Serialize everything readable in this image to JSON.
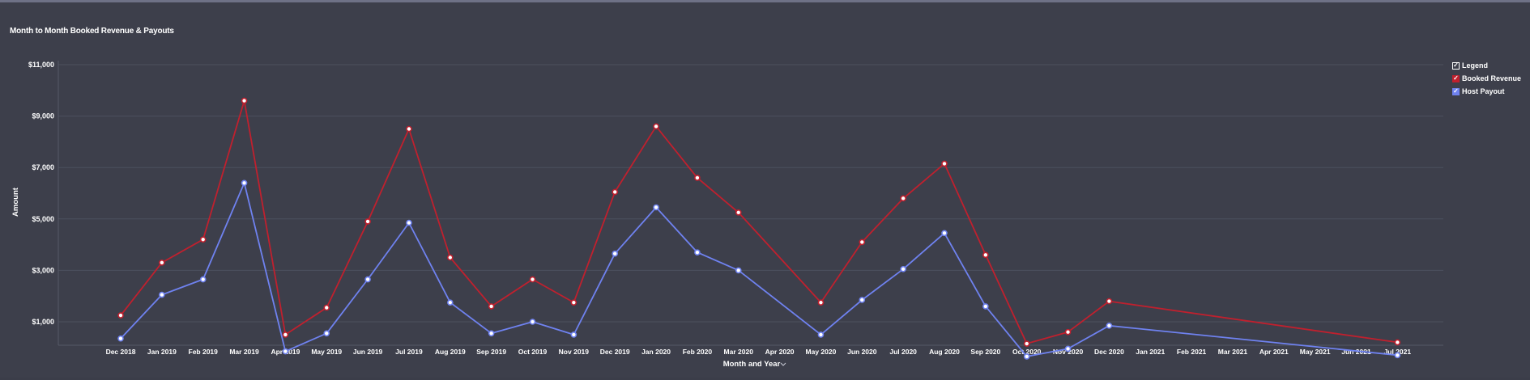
{
  "chart_data": {
    "type": "line",
    "title": "Month to Month Booked Revenue & Payouts",
    "xlabel": "Month and Year",
    "xlabel_icon": "chevron-down-icon",
    "ylabel": "Amount",
    "y_ticks": [
      1000,
      3000,
      5000,
      7000,
      9000,
      11000
    ],
    "y_tick_labels": [
      "$1,000",
      "$3,000",
      "$5,000",
      "$7,000",
      "$9,000",
      "$11,000"
    ],
    "ylim": [
      0,
      11000
    ],
    "grid": true,
    "legend_position": "top-right",
    "categories": [
      "Dec 2018",
      "Jan 2019",
      "Feb 2019",
      "Mar 2019",
      "Apr 2019",
      "May 2019",
      "Jun 2019",
      "Jul 2019",
      "Aug 2019",
      "Sep 2019",
      "Oct 2019",
      "Nov 2019",
      "Dec 2019",
      "Jan 2020",
      "Feb 2020",
      "Mar 2020",
      "Apr 2020",
      "May 2020",
      "Jun 2020",
      "Jul 2020",
      "Aug 2020",
      "Sep 2020",
      "Oct 2020",
      "Nov 2020",
      "Dec 2020",
      "Jan 2021",
      "Feb 2021",
      "Mar 2021",
      "Apr 2021",
      "May 2021",
      "Jun 2021",
      "Jul 2021"
    ],
    "series": [
      {
        "name": "Booked Revenue",
        "color": "#c0202e",
        "values": [
          1250,
          3300,
          4200,
          9600,
          500,
          1550,
          4900,
          8500,
          3500,
          1600,
          2650,
          1750,
          6050,
          8600,
          6600,
          5250,
          null,
          1750,
          4100,
          5800,
          7150,
          3600,
          150,
          600,
          1800,
          null,
          null,
          null,
          null,
          null,
          null,
          200
        ]
      },
      {
        "name": "Host Payout",
        "color": "#6f82f0",
        "values": [
          350,
          2050,
          2650,
          6400,
          -150,
          550,
          2650,
          4850,
          1750,
          550,
          1000,
          500,
          3650,
          5450,
          3700,
          3000,
          null,
          500,
          1850,
          3050,
          4450,
          1600,
          -350,
          -50,
          850,
          null,
          null,
          null,
          null,
          null,
          null,
          -300
        ]
      }
    ]
  },
  "legend": {
    "header": "Legend",
    "items": [
      "Booked Revenue",
      "Host Payout"
    ]
  }
}
